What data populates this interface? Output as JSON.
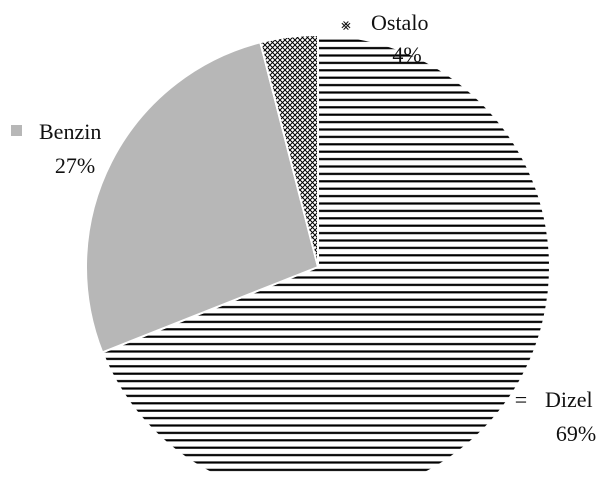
{
  "chart_data": {
    "type": "pie",
    "title": "",
    "slices": [
      {
        "label": "Dizel",
        "value": 69,
        "display": "69%",
        "pattern": "horizontal-lines",
        "fill": "#000000",
        "marker": "="
      },
      {
        "label": "Benzin",
        "value": 27,
        "display": "27%",
        "pattern": "solid",
        "fill": "#b7b7b7",
        "marker": "■"
      },
      {
        "label": "Ostalo",
        "value": 4,
        "display": "4%",
        "pattern": "crosshatch",
        "fill": "#000000",
        "marker": "⨳"
      }
    ],
    "start_angle_deg": 0,
    "direction": "clockwise",
    "legend": "none (labels beside slices)"
  }
}
